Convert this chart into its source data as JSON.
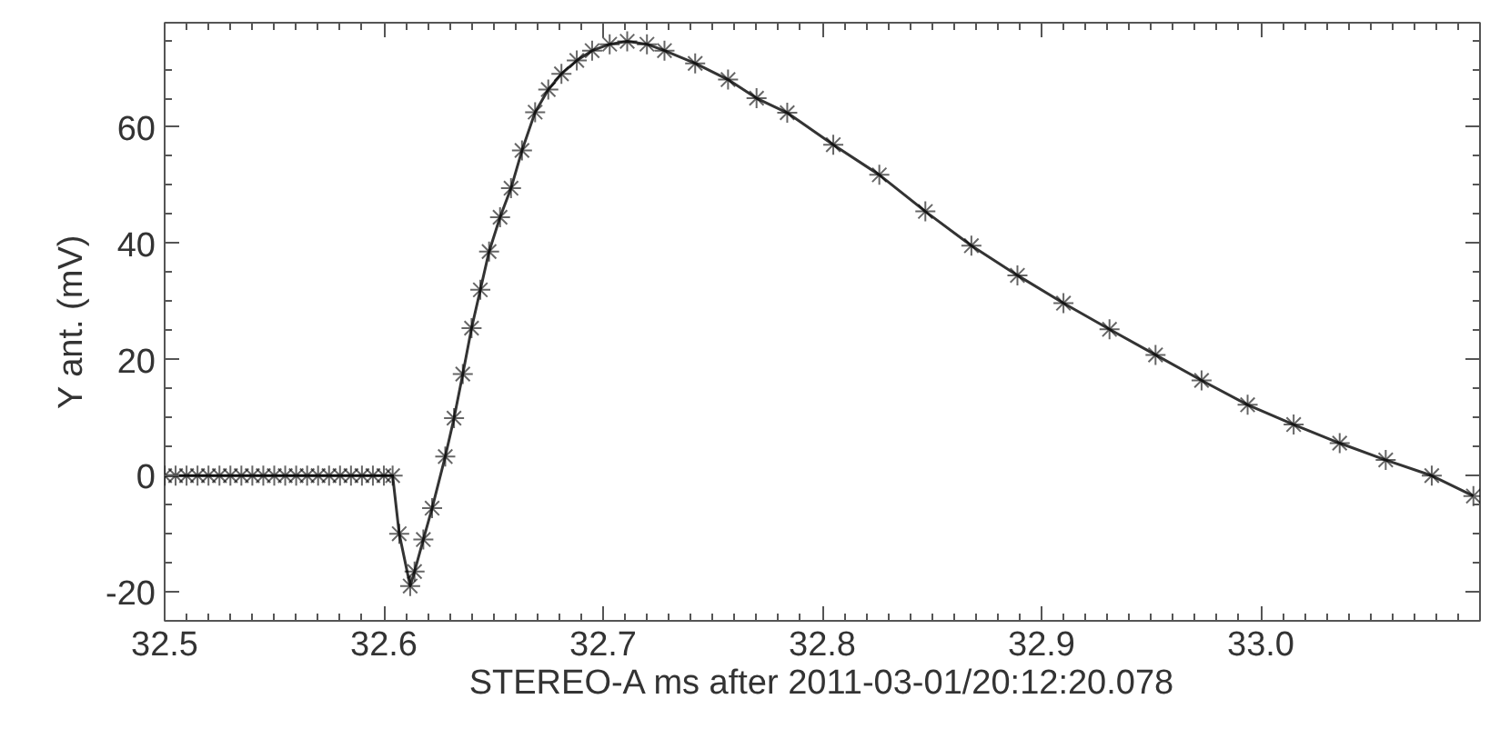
{
  "chart_data": {
    "type": "line",
    "xlabel": "STEREO-A ms after 2011-03-01/20:12:20.078",
    "ylabel": "Y ant. (mV)",
    "x": [
      32.5,
      32.505,
      32.51,
      32.515,
      32.52,
      32.525,
      32.53,
      32.535,
      32.54,
      32.545,
      32.55,
      32.555,
      32.56,
      32.565,
      32.57,
      32.575,
      32.58,
      32.585,
      32.59,
      32.595,
      32.6,
      32.604,
      32.607,
      32.612,
      32.614,
      32.618,
      32.622,
      32.628,
      32.632,
      32.636,
      32.64,
      32.644,
      32.648,
      32.653,
      32.658,
      32.663,
      32.669,
      32.675,
      32.681,
      32.688,
      32.695,
      32.703,
      32.711,
      32.72,
      32.728,
      32.742,
      32.757,
      32.77,
      32.784,
      32.805,
      32.826,
      32.847,
      32.868,
      32.889,
      32.91,
      32.931,
      32.952,
      32.973,
      32.994,
      33.015,
      33.036,
      33.057,
      33.078,
      33.097
    ],
    "series": [
      {
        "color": "#000000",
        "values": [
          0,
          0,
          0,
          0,
          0,
          0,
          0,
          0,
          0,
          0,
          0,
          0,
          0,
          0,
          0,
          0,
          0,
          0,
          0,
          0,
          0,
          0,
          -10,
          -19,
          -16.5,
          -11,
          -5.6,
          3.3,
          9.9,
          17.5,
          25.4,
          32,
          38.6,
          44.5,
          49.5,
          56,
          62.6,
          66.5,
          69.2,
          71.5,
          73.2,
          74.3,
          74.8,
          74.3,
          73.2,
          71,
          68.2,
          65,
          62.5,
          57,
          51.8,
          45.5,
          39.6,
          34.5,
          29.7,
          25.2,
          20.8,
          16.4,
          12.2,
          8.8,
          5.6,
          2.7,
          0,
          -3.5
        ]
      }
    ],
    "xlim": [
      32.5,
      33.1
    ],
    "ylim": [
      -25,
      78
    ],
    "xticks": [
      32.5,
      32.6,
      32.7,
      32.8,
      32.9,
      {
        "value": 33,
        "label": "33.0"
      }
    ],
    "yticks": [
      -20,
      0,
      20,
      40,
      60
    ],
    "grid": false,
    "marker": "cross",
    "line_style": "solid"
  }
}
